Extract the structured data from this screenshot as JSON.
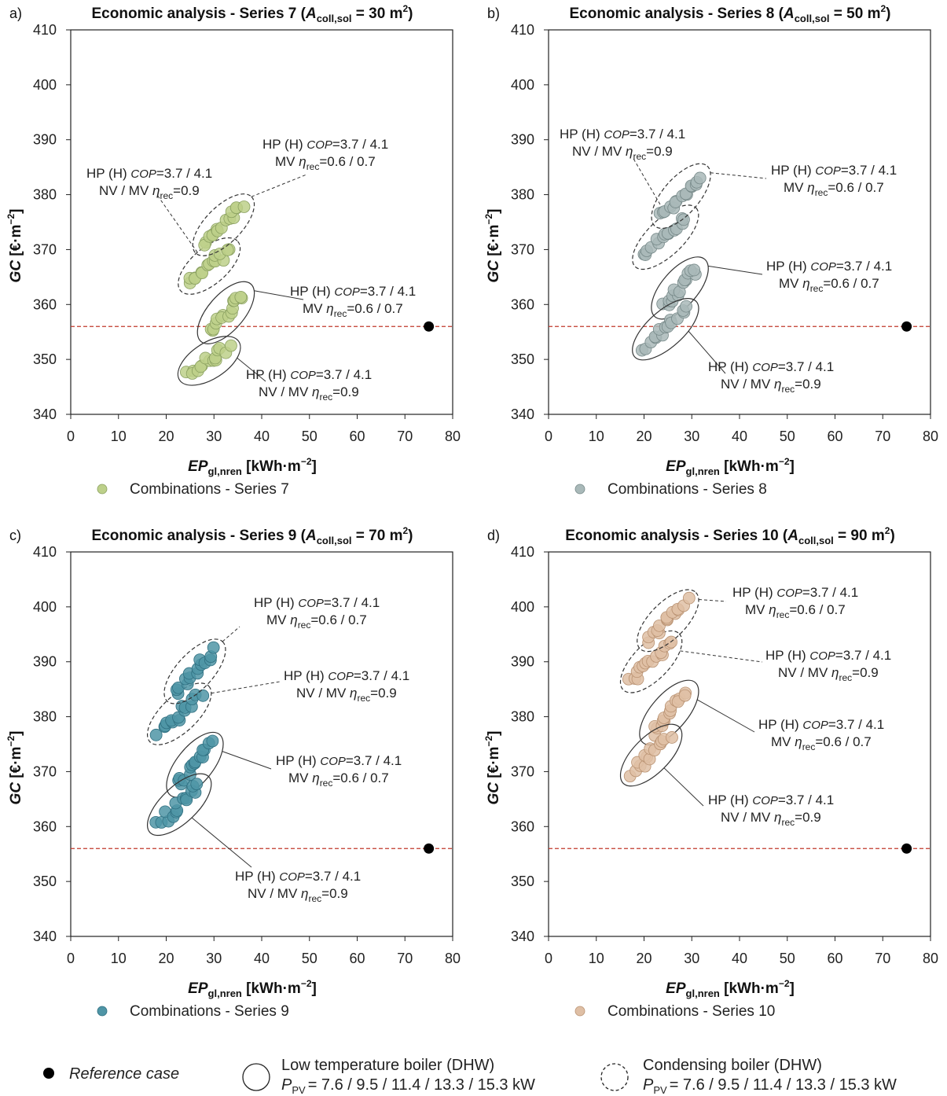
{
  "figure": {
    "reference_label": "Reference case",
    "legend_solid_title": "Low temperature boiler (DHW)",
    "legend_solid_sub": "= 7.6 / 9.5 / 11.4 / 13.3 / 15.3 kW",
    "legend_dashed_title": "Condensing boiler (DHW)",
    "legend_dashed_sub": "= 7.6 / 9.5 / 11.4 / 13.3 / 15.3 kW",
    "ppv_symbol": "P",
    "ppv_sub": "PV"
  },
  "chart_data": [
    {
      "type": "scatter",
      "letter": "a)",
      "title_prefix": "Economic analysis - Series 7 (",
      "title_sym": "A",
      "title_sub": "coll,sol",
      "title_suffix": " = 30 m",
      "title_sup": "2",
      "title_close": ")",
      "xlabel": "EP",
      "xlabel_sub": "gl,nren",
      "xlabel_unit": " [kWh·m",
      "xlabel_sup": "−2",
      "xlabel_close": "]",
      "ylabel": "GC",
      "ylabel_unit": " [€·m",
      "ylabel_sup": "−2",
      "ylabel_close": "]",
      "xlim": [
        0,
        80
      ],
      "ylim": [
        340,
        410
      ],
      "xticks": [
        "0",
        "10",
        "20",
        "30",
        "40",
        "50",
        "60",
        "70",
        "80"
      ],
      "yticks": [
        "340",
        "350",
        "360",
        "370",
        "380",
        "390",
        "400",
        "410"
      ],
      "reference": {
        "x": 75,
        "y": 356
      },
      "color": "#bdd08a",
      "stroke": "#8aa060",
      "legend": "Combinations - Series 7",
      "groups": [
        {
          "style": "dashed",
          "from": [
            25,
            364
          ],
          "to": [
            33,
            370
          ],
          "line1": "HP (H) COP=3.7 / 4.1",
          "line2": "NV / MV ηrec=0.9"
        },
        {
          "style": "dashed",
          "from": [
            28,
            371
          ],
          "to": [
            36,
            378
          ],
          "line1": "HP (H) COP=3.7 / 4.1",
          "line2": "MV ηrec=0.6 / 0.7"
        },
        {
          "style": "solid",
          "from": [
            29,
            355
          ],
          "to": [
            36,
            362
          ],
          "line1": "HP (H) COP=3.7 / 4.1",
          "line2": "MV ηrec=0.6 / 0.7"
        },
        {
          "style": "solid",
          "from": [
            25,
            347.5
          ],
          "to": [
            33,
            352
          ],
          "line1": "HP (H) COP=3.7 / 4.1",
          "line2": "NV / MV ηrec=0.9"
        }
      ]
    },
    {
      "type": "scatter",
      "letter": "b)",
      "title_prefix": "Economic analysis - Series 8 (",
      "title_sym": "A",
      "title_sub": "coll,sol",
      "title_suffix": " = 50 m",
      "title_sup": "2",
      "title_close": ")",
      "xlabel": "EP",
      "xlabel_sub": "gl,nren",
      "xlabel_unit": " [kWh·m",
      "xlabel_sup": "−2",
      "xlabel_close": "]",
      "ylabel": "GC",
      "ylabel_unit": " [€·m",
      "ylabel_sup": "−2",
      "ylabel_close": "]",
      "xlim": [
        0,
        80
      ],
      "ylim": [
        340,
        410
      ],
      "xticks": [
        "0",
        "10",
        "20",
        "30",
        "40",
        "50",
        "60",
        "70",
        "80"
      ],
      "yticks": [
        "340",
        "350",
        "360",
        "370",
        "380",
        "390",
        "400",
        "410"
      ],
      "reference": {
        "x": 75,
        "y": 356
      },
      "color": "#a9b9b9",
      "stroke": "#768888",
      "legend": "Combinations - Series 8",
      "groups": [
        {
          "style": "dashed",
          "from": [
            20,
            368.5
          ],
          "to": [
            29,
            376
          ],
          "line1": "HP (H) COP=3.7 / 4.1",
          "line2": "NV / MV ηrec=0.9"
        },
        {
          "style": "dashed",
          "from": [
            24,
            376
          ],
          "to": [
            31.5,
            383.5
          ],
          "line1": "HP (H) COP=3.7 / 4.1",
          "line2": "MV ηrec=0.6 / 0.7"
        },
        {
          "style": "solid",
          "from": [
            24,
            359.5
          ],
          "to": [
            31,
            366.5
          ],
          "line1": "HP (H) COP=3.7 / 4.1",
          "line2": "MV ηrec=0.6 / 0.7"
        },
        {
          "style": "solid",
          "from": [
            20,
            352
          ],
          "to": [
            29,
            359
          ],
          "line1": "HP (H) COP=3.7 / 4.1",
          "line2": "NV / MV ηrec=0.9"
        }
      ]
    },
    {
      "type": "scatter",
      "letter": "c)",
      "title_prefix": "Economic analysis - Series 9 (",
      "title_sym": "A",
      "title_sub": "coll,sol",
      "title_suffix": " = 70 m",
      "title_sup": "2",
      "title_close": ")",
      "xlabel": "EP",
      "xlabel_sub": "gl,nren",
      "xlabel_unit": " [kWh·m",
      "xlabel_sup": "−2",
      "xlabel_close": "]",
      "ylabel": "GC",
      "ylabel_unit": " [€·m",
      "ylabel_sup": "−2",
      "ylabel_close": "]",
      "xlim": [
        0,
        80
      ],
      "ylim": [
        340,
        410
      ],
      "xticks": [
        "0",
        "10",
        "20",
        "30",
        "40",
        "50",
        "60",
        "70",
        "80"
      ],
      "yticks": [
        "340",
        "350",
        "360",
        "370",
        "380",
        "390",
        "400",
        "410"
      ],
      "reference": {
        "x": 75,
        "y": 356
      },
      "color": "#4f95a6",
      "stroke": "#2f6f80",
      "legend": "Combinations - Series 9",
      "groups": [
        {
          "style": "dashed",
          "from": [
            18.5,
            377
          ],
          "to": [
            27,
            384
          ],
          "line1": "HP (H) COP=3.7 / 4.1",
          "line2": "NV / MV ηrec=0.9"
        },
        {
          "style": "dashed",
          "from": [
            22,
            384.5
          ],
          "to": [
            30,
            392
          ],
          "line1": "HP (H) COP=3.7 / 4.1",
          "line2": "MV ηrec=0.6 / 0.7"
        },
        {
          "style": "solid",
          "from": [
            22.5,
            367.5
          ],
          "to": [
            29.5,
            375
          ],
          "line1": "HP (H) COP=3.7 / 4.1",
          "line2": "MV ηrec=0.6 / 0.7"
        },
        {
          "style": "solid",
          "from": [
            18.5,
            360.5
          ],
          "to": [
            27,
            367.5
          ],
          "line1": "HP (H) COP=3.7 / 4.1",
          "line2": "NV / MV ηrec=0.9"
        }
      ]
    },
    {
      "type": "scatter",
      "letter": "d)",
      "title_prefix": "Economic analysis - Series 10 (",
      "title_sym": "A",
      "title_sub": "coll,sol",
      "title_suffix": " = 90 m",
      "title_sup": "2",
      "title_close": ")",
      "xlabel": "EP",
      "xlabel_sub": "gl,nren",
      "xlabel_unit": " [kWh·m",
      "xlabel_sup": "−2",
      "xlabel_close": "]",
      "ylabel": "GC",
      "ylabel_unit": " [€·m",
      "ylabel_sup": "−2",
      "ylabel_close": "]",
      "xlim": [
        0,
        80
      ],
      "ylim": [
        340,
        410
      ],
      "xticks": [
        "0",
        "10",
        "20",
        "30",
        "40",
        "50",
        "60",
        "70",
        "80"
      ],
      "yticks": [
        "340",
        "350",
        "360",
        "370",
        "380",
        "390",
        "400",
        "410"
      ],
      "reference": {
        "x": 75,
        "y": 356
      },
      "color": "#dfbfa5",
      "stroke": "#b99272",
      "legend": "Combinations - Series 10",
      "groups": [
        {
          "style": "dashed",
          "from": [
            17.5,
            386.5
          ],
          "to": [
            25.5,
            393.5
          ],
          "line1": "HP (H) COP=3.7 / 4.1",
          "line2": "NV / MV ηrec=0.9"
        },
        {
          "style": "dashed",
          "from": [
            21,
            394
          ],
          "to": [
            29,
            401
          ],
          "line1": "HP (H) COP=3.7 / 4.1",
          "line2": "MV ηrec=0.6 / 0.7"
        },
        {
          "style": "solid",
          "from": [
            21.5,
            377
          ],
          "to": [
            29,
            384.5
          ],
          "line1": "HP (H) COP=3.7 / 4.1",
          "line2": "MV ηrec=0.6 / 0.7"
        },
        {
          "style": "solid",
          "from": [
            17.5,
            369.5
          ],
          "to": [
            25.5,
            376.5
          ],
          "line1": "HP (H) COP=3.7 / 4.1",
          "line2": "NV / MV ηrec=0.9"
        }
      ]
    }
  ]
}
